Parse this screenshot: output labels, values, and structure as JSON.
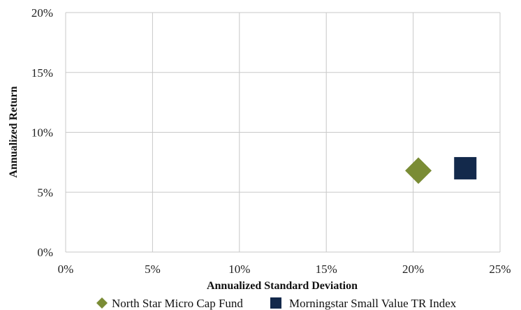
{
  "chart_data": {
    "type": "scatter",
    "title": "",
    "xlabel": "Annualized Standard Deviation",
    "ylabel": "Annualized Return",
    "xlim": [
      0,
      25
    ],
    "ylim": [
      0,
      20
    ],
    "x_ticks": [
      0,
      5,
      10,
      15,
      20,
      25
    ],
    "y_ticks": [
      0,
      5,
      10,
      15,
      20
    ],
    "x_tick_labels": [
      "0%",
      "5%",
      "10%",
      "15%",
      "20%",
      "25%"
    ],
    "y_tick_labels": [
      "0%",
      "5%",
      "10%",
      "15%",
      "20%"
    ],
    "grid": true,
    "legend_position": "bottom",
    "series": [
      {
        "name": "North Star Micro Cap Fund",
        "marker": "diamond",
        "color": "#7a8c35",
        "x": [
          20.3
        ],
        "y": [
          6.8
        ]
      },
      {
        "name": "Morningstar Small Value TR Index",
        "marker": "square",
        "color": "#13294b",
        "x": [
          23.0
        ],
        "y": [
          7.0
        ]
      }
    ]
  }
}
